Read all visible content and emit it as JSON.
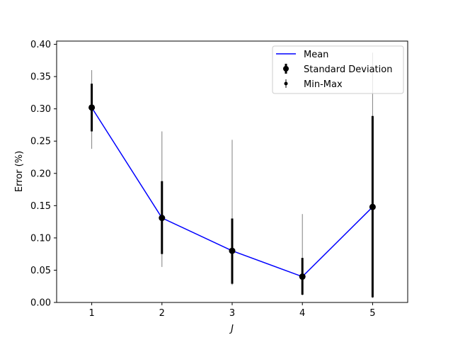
{
  "chart_data": {
    "type": "line",
    "title": "",
    "xlabel": "J",
    "ylabel": "Error (%)",
    "xlim": [
      0.5,
      5.5
    ],
    "ylim": [
      0.0,
      0.405
    ],
    "x_ticks": [
      "1",
      "2",
      "3",
      "4",
      "5"
    ],
    "y_ticks": [
      "0.00",
      "0.05",
      "0.10",
      "0.15",
      "0.20",
      "0.25",
      "0.30",
      "0.35",
      "0.40"
    ],
    "grid": false,
    "legend_position": "top-right",
    "x": [
      1,
      2,
      3,
      4,
      5
    ],
    "series": [
      {
        "name": "Mean",
        "values": [
          0.302,
          0.131,
          0.08,
          0.04,
          0.148
        ]
      },
      {
        "name": "Standard Deviation",
        "lower": [
          0.265,
          0.075,
          0.029,
          0.012,
          0.008
        ],
        "upper": [
          0.339,
          0.188,
          0.13,
          0.069,
          0.289
        ]
      },
      {
        "name": "Min-Max",
        "lower": [
          0.238,
          0.055,
          0.027,
          0.011,
          0.007
        ],
        "upper": [
          0.36,
          0.265,
          0.252,
          0.137,
          0.387
        ]
      }
    ],
    "colors": {
      "mean_line": "#0000ff",
      "std_bar": "#000000",
      "minmax_bar": "#808080",
      "marker": "#000000"
    }
  }
}
